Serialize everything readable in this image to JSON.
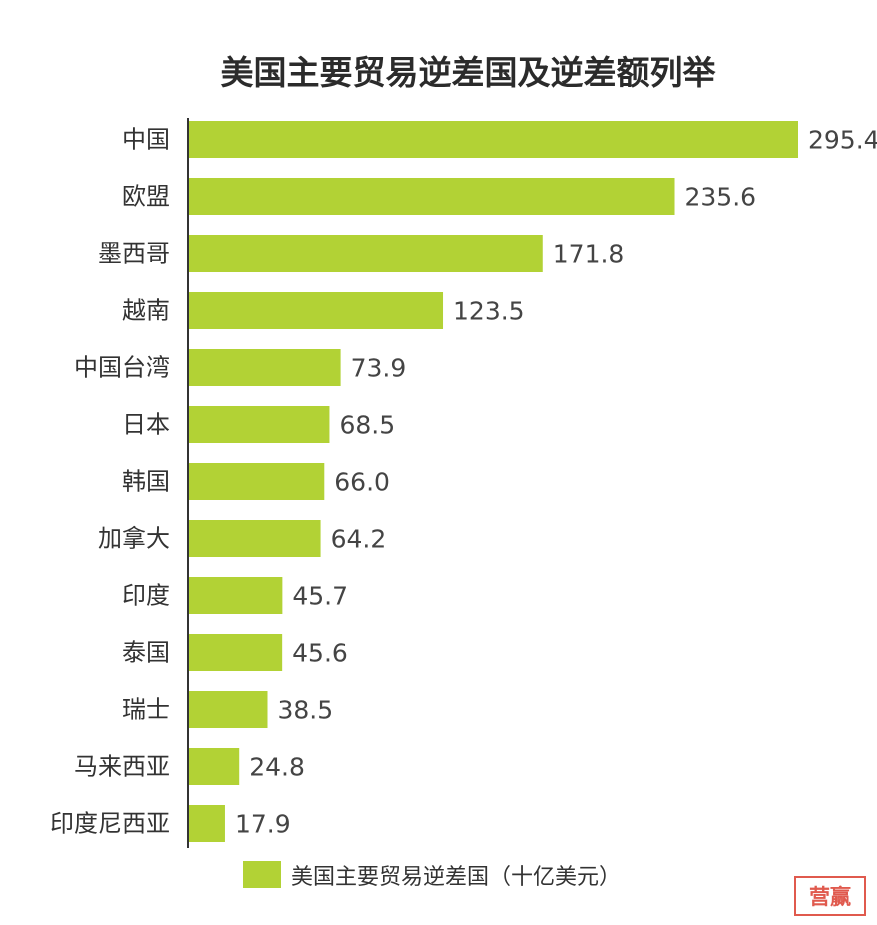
{
  "colors": {
    "bar": "#b2d235",
    "axis": "#333333",
    "stamp": "#e05a4e"
  },
  "chart_data": {
    "type": "bar",
    "orientation": "horizontal",
    "title": "美国主要贸易逆差国及逆差额列举",
    "categories": [
      "中国",
      "欧盟",
      "墨西哥",
      "越南",
      "中国台湾",
      "日本",
      "韩国",
      "加拿大",
      "印度",
      "泰国",
      "瑞士",
      "马来西亚",
      "印度尼西亚"
    ],
    "series": [
      {
        "name": "美国主要贸易逆差国（十亿美元）",
        "values": [
          295.4,
          235.6,
          171.8,
          123.5,
          73.9,
          68.5,
          66.0,
          64.2,
          45.7,
          45.6,
          38.5,
          24.8,
          17.9
        ],
        "labels": [
          "295.4",
          "235.6",
          "171.8",
          "123.5",
          "73.9",
          "68.5",
          "66.0",
          "64.2",
          "45.7",
          "45.6",
          "38.5",
          "24.8",
          "17.9"
        ]
      }
    ],
    "xlim": [
      0,
      295.4
    ],
    "grid": false,
    "legend": "bottom"
  },
  "watermark": {
    "text": "营赢"
  }
}
